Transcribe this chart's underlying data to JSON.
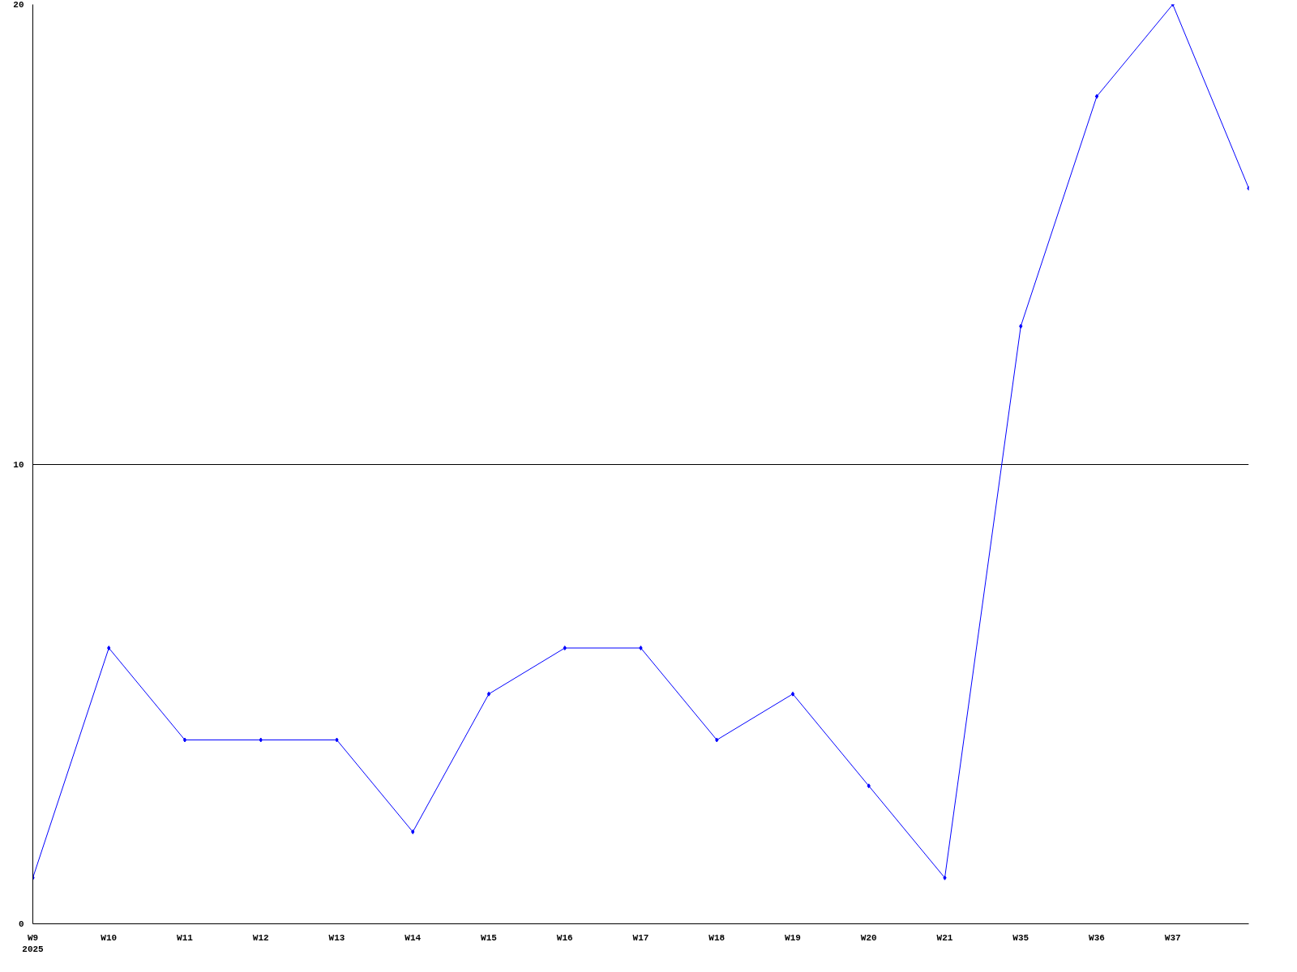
{
  "chart_data": {
    "type": "line",
    "categories": [
      "W9\n2025",
      "W10",
      "W11",
      "W12",
      "W13",
      "W14",
      "W15",
      "W16",
      "W17",
      "W18",
      "W19",
      "W20",
      "W21",
      "W35",
      "W36",
      "W37",
      null
    ],
    "series": [
      {
        "color": "#0000ff",
        "values": [
          1,
          6,
          4,
          4,
          4,
          2,
          5,
          6,
          6,
          4,
          5,
          3,
          1,
          13,
          18,
          20,
          16
        ]
      }
    ],
    "ylim": [
      0,
      20
    ],
    "yticks": [
      0,
      10,
      20
    ],
    "grid": "y",
    "marker": "diamond",
    "line_style": "solid"
  }
}
